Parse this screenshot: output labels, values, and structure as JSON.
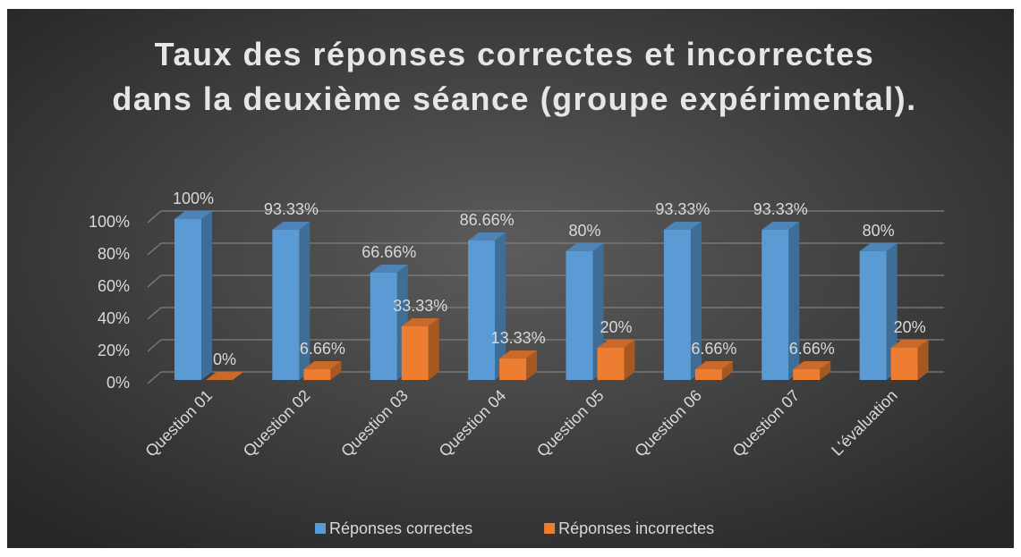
{
  "chart_data": {
    "type": "bar3d",
    "title": "Taux des réponses correctes et incorrectes dans la deuxième séance (groupe expérimental).",
    "categories": [
      "Question 01",
      "Question 02",
      "Question 03",
      "Question 04",
      "Question 05",
      "Question 06",
      "Question 07",
      "L'évaluation"
    ],
    "series": [
      {
        "name": "Réponses correctes",
        "color": "#5b9bd5",
        "values": [
          100,
          93.33,
          66.66,
          86.66,
          80,
          93.33,
          93.33,
          80
        ],
        "value_labels": [
          "100%",
          "93.33%",
          "66.66%",
          "86.66%",
          "80%",
          "93.33%",
          "93.33%",
          "80%"
        ]
      },
      {
        "name": "Réponses incorrectes",
        "color": "#ed7d31",
        "values": [
          0,
          6.66,
          33.33,
          13.33,
          20,
          6.66,
          6.66,
          20
        ],
        "value_labels": [
          "0%",
          "6.66%",
          "33.33%",
          "13.33%",
          "20%",
          "6.66%",
          "6.66%",
          "20%"
        ]
      }
    ],
    "ylim": [
      0,
      100
    ],
    "yticks": [
      {
        "value": 0,
        "label": "0%"
      },
      {
        "value": 20,
        "label": "20%"
      },
      {
        "value": 40,
        "label": "40%"
      },
      {
        "value": 60,
        "label": "60%"
      },
      {
        "value": 80,
        "label": "80%"
      },
      {
        "value": 100,
        "label": "100%"
      }
    ],
    "grid": true,
    "legend": "bottom"
  }
}
